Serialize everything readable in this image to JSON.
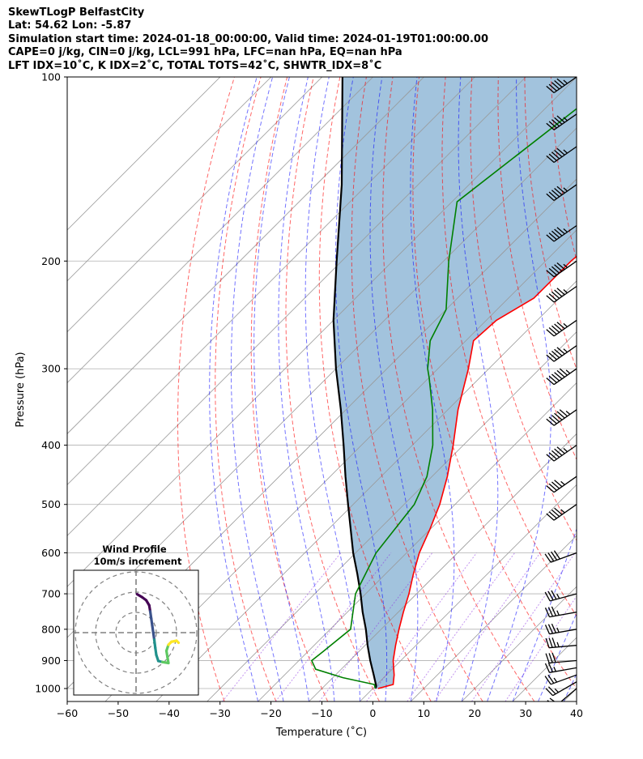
{
  "header": {
    "line1": "SkewTLogP BelfastCity",
    "line2": "Lat: 54.62   Lon: -5.87",
    "line3": "Simulation start time: 2024-01-18_00:00:00, Valid time: 2024-01-19T01:00:00.00",
    "line4": "CAPE=0 j/kg, CIN=0 j/kg, LCL=991 hPa, LFC=nan hPa, EQ=nan hPa",
    "line5": "LFT IDX=10˚C, K IDX=2˚C, TOTAL TOTS=42˚C, SHWTR_IDX=8˚C"
  },
  "chart_data": {
    "type": "line",
    "xlabel": "Temperature (˚C)",
    "ylabel": "Pressure (hPa)",
    "xlim": [
      -60,
      40
    ],
    "ylim": [
      1050,
      100
    ],
    "y_scale": "log",
    "skew": "skew-T",
    "grid": true,
    "x_ticks": [
      -60,
      -50,
      -40,
      -30,
      -20,
      -10,
      0,
      10,
      20,
      30,
      40
    ],
    "y_ticks": [
      1000,
      900,
      800,
      700,
      600,
      500,
      400,
      300,
      200,
      100
    ],
    "series": [
      {
        "kind": "temperature",
        "color": "#ff0000",
        "points": [
          [
            1000,
            1.0
          ],
          [
            985,
            3.2
          ],
          [
            950,
            1.5
          ],
          [
            900,
            -1.5
          ],
          [
            850,
            -4.0
          ],
          [
            800,
            -6.5
          ],
          [
            750,
            -9.0
          ],
          [
            700,
            -11.5
          ],
          [
            650,
            -14.5
          ],
          [
            600,
            -17.5
          ],
          [
            550,
            -20.0
          ],
          [
            500,
            -23.0
          ],
          [
            450,
            -27.0
          ],
          [
            400,
            -32.0
          ],
          [
            350,
            -38.0
          ],
          [
            300,
            -44.0
          ],
          [
            270,
            -48.5
          ],
          [
            250,
            -48.0
          ],
          [
            230,
            -45.0
          ],
          [
            200,
            -45.0
          ],
          [
            180,
            -44.0
          ],
          [
            160,
            -43.0
          ],
          [
            150,
            -45.0
          ],
          [
            130,
            -45.0
          ],
          [
            100,
            -48.0
          ]
        ]
      },
      {
        "kind": "dewpoint",
        "color": "#008000",
        "points": [
          [
            1000,
            0.5
          ],
          [
            985,
            -0.5
          ],
          [
            960,
            -8.0
          ],
          [
            930,
            -15.0
          ],
          [
            900,
            -17.5
          ],
          [
            870,
            -17.0
          ],
          [
            800,
            -16.0
          ],
          [
            700,
            -22.0
          ],
          [
            600,
            -26.0
          ],
          [
            500,
            -28.0
          ],
          [
            450,
            -31.0
          ],
          [
            400,
            -36.0
          ],
          [
            350,
            -43.0
          ],
          [
            310,
            -50.0
          ],
          [
            300,
            -52.0
          ],
          [
            270,
            -57.0
          ],
          [
            240,
            -60.0
          ],
          [
            200,
            -69.0
          ],
          [
            160,
            -79.0
          ],
          [
            100,
            -72.0
          ]
        ]
      },
      {
        "kind": "parcel",
        "color": "#000000",
        "points": [
          [
            1000,
            0.5
          ],
          [
            991,
            0.2
          ],
          [
            950,
            -2.5
          ],
          [
            900,
            -6.0
          ],
          [
            850,
            -9.5
          ],
          [
            800,
            -13.0
          ],
          [
            750,
            -17.0
          ],
          [
            700,
            -21.0
          ],
          [
            650,
            -25.5
          ],
          [
            600,
            -30.5
          ],
          [
            550,
            -35.5
          ],
          [
            500,
            -41.0
          ],
          [
            450,
            -47.0
          ],
          [
            400,
            -53.5
          ],
          [
            350,
            -61.0
          ],
          [
            300,
            -70.0
          ],
          [
            250,
            -80.0
          ],
          [
            200,
            -91.0
          ],
          [
            150,
            -105.0
          ],
          [
            100,
            -126.0
          ]
        ]
      }
    ],
    "wind_barbs": {
      "color": "#000000",
      "barbs": [
        {
          "p": 1000,
          "speed_kt": 20,
          "direction_deg": 230
        },
        {
          "p": 975,
          "speed_kt": 25,
          "direction_deg": 240
        },
        {
          "p": 950,
          "speed_kt": 25,
          "direction_deg": 250
        },
        {
          "p": 925,
          "speed_kt": 25,
          "direction_deg": 260
        },
        {
          "p": 900,
          "speed_kt": 30,
          "direction_deg": 265
        },
        {
          "p": 850,
          "speed_kt": 35,
          "direction_deg": 265
        },
        {
          "p": 800,
          "speed_kt": 35,
          "direction_deg": 260
        },
        {
          "p": 750,
          "speed_kt": 35,
          "direction_deg": 260
        },
        {
          "p": 700,
          "speed_kt": 35,
          "direction_deg": 255
        },
        {
          "p": 600,
          "speed_kt": 40,
          "direction_deg": 250
        },
        {
          "p": 500,
          "speed_kt": 45,
          "direction_deg": 235
        },
        {
          "p": 450,
          "speed_kt": 45,
          "direction_deg": 235
        },
        {
          "p": 400,
          "speed_kt": 55,
          "direction_deg": 235
        },
        {
          "p": 350,
          "speed_kt": 65,
          "direction_deg": 235
        },
        {
          "p": 300,
          "speed_kt": 65,
          "direction_deg": 235
        },
        {
          "p": 275,
          "speed_kt": 55,
          "direction_deg": 235
        },
        {
          "p": 250,
          "speed_kt": 55,
          "direction_deg": 235
        },
        {
          "p": 220,
          "speed_kt": 55,
          "direction_deg": 235
        },
        {
          "p": 200,
          "speed_kt": 55,
          "direction_deg": 235
        },
        {
          "p": 175,
          "speed_kt": 55,
          "direction_deg": 235
        },
        {
          "p": 150,
          "speed_kt": 55,
          "direction_deg": 235
        },
        {
          "p": 130,
          "speed_kt": 55,
          "direction_deg": 235
        },
        {
          "p": 115,
          "speed_kt": 55,
          "direction_deg": 235
        },
        {
          "p": 100,
          "speed_kt": 55,
          "direction_deg": 235
        }
      ]
    },
    "reference_lines": {
      "isotherm_color": "#999999",
      "dry_adiabat_color": "#ff0000",
      "moist_adiabat_color": "#0000ff",
      "mixing_ratio_color": "#8a2be2",
      "cape_fill_color": "#a2c3dd"
    },
    "inset": {
      "title_line1": "Wind Profile",
      "title_line2": "10m/s increment",
      "rings_ms": [
        10,
        20,
        30
      ],
      "hodograph": [
        [
          0.5,
          19.0
        ],
        [
          3.0,
          17.5
        ],
        [
          5.0,
          16.0
        ],
        [
          6.5,
          13.5
        ],
        [
          7.0,
          10.5
        ],
        [
          7.5,
          7.0
        ],
        [
          8.0,
          3.5
        ],
        [
          8.5,
          0.0
        ],
        [
          9.0,
          -3.5
        ],
        [
          9.5,
          -7.5
        ],
        [
          10.0,
          -11.0
        ],
        [
          11.0,
          -14.0
        ],
        [
          13.0,
          -14.5
        ],
        [
          16.0,
          -15.0
        ],
        [
          15.5,
          -12.0
        ],
        [
          15.0,
          -9.0
        ],
        [
          16.0,
          -6.0
        ],
        [
          17.5,
          -4.5
        ],
        [
          20.0,
          -4.0
        ],
        [
          21.0,
          -5.0
        ]
      ],
      "colormap": [
        "#440154",
        "#3b528b",
        "#21918c",
        "#5ec962",
        "#fde725"
      ]
    }
  }
}
